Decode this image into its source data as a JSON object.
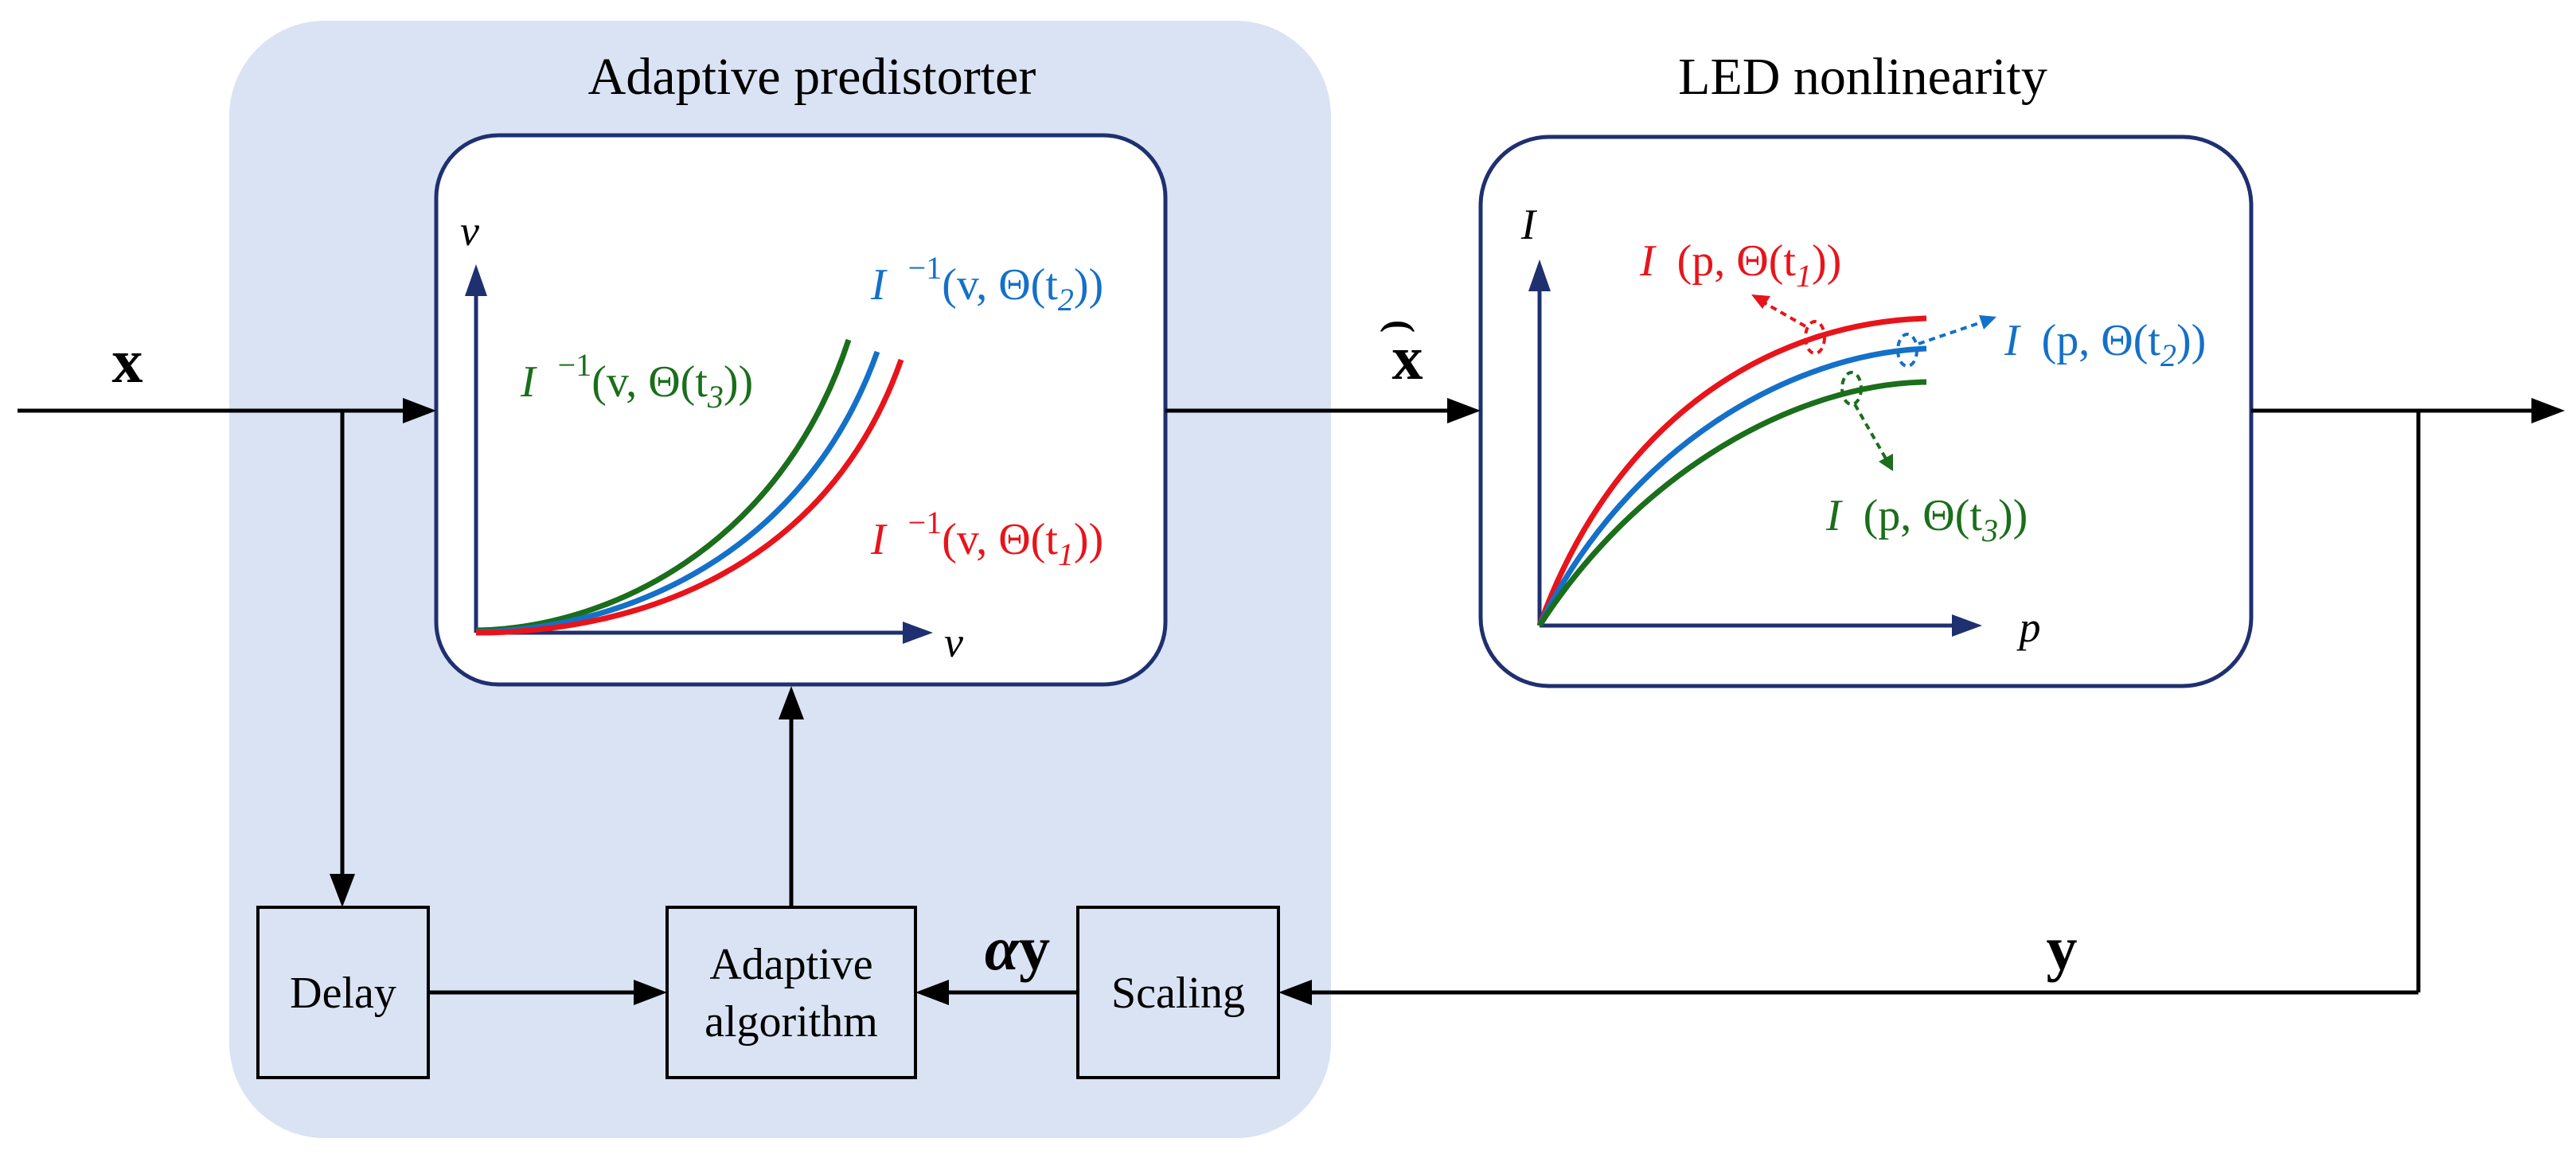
{
  "colors": {
    "panel_fill": "#d9e3f3",
    "box_stroke": "#1f3070",
    "axis": "#1f3070",
    "line": "#000000",
    "red": "#e8141b",
    "blue": "#1470c8",
    "green": "#1b6e1b"
  },
  "titles": {
    "predistorter": "Adaptive predistorter",
    "led": "LED nonlinearity"
  },
  "signals": {
    "x_input": "x",
    "x_tilde": "x",
    "x_tilde_accent": "(",
    "y_output": "y",
    "alpha": "α",
    "alpha_y": "y"
  },
  "blocks": {
    "delay": "Delay",
    "adaptive_line1": "Adaptive",
    "adaptive_line2": "algorithm",
    "scaling": "Scaling"
  },
  "predistorter_plot": {
    "x_axis": "v",
    "y_axis": "v",
    "curves": [
      {
        "color": "green",
        "f": "I",
        "sup": "−1",
        "args": "(v, Θ(t",
        "sub": "3",
        "close": "))"
      },
      {
        "color": "blue",
        "f": "I",
        "sup": "−1",
        "args": "(v, Θ(t",
        "sub": "2",
        "close": "))"
      },
      {
        "color": "red",
        "f": "I",
        "sup": "−1",
        "args": "(v, Θ(t",
        "sub": "1",
        "close": "))"
      }
    ]
  },
  "led_plot": {
    "x_axis": "p",
    "y_axis": "I",
    "curves": [
      {
        "color": "red",
        "f": "I",
        "args": "(p, Θ(t",
        "sub": "1",
        "close": "))"
      },
      {
        "color": "blue",
        "f": "I",
        "args": "(p, Θ(t",
        "sub": "2",
        "close": "))"
      },
      {
        "color": "green",
        "f": "I",
        "args": "(p, Θ(t",
        "sub": "3",
        "close": "))"
      }
    ]
  }
}
